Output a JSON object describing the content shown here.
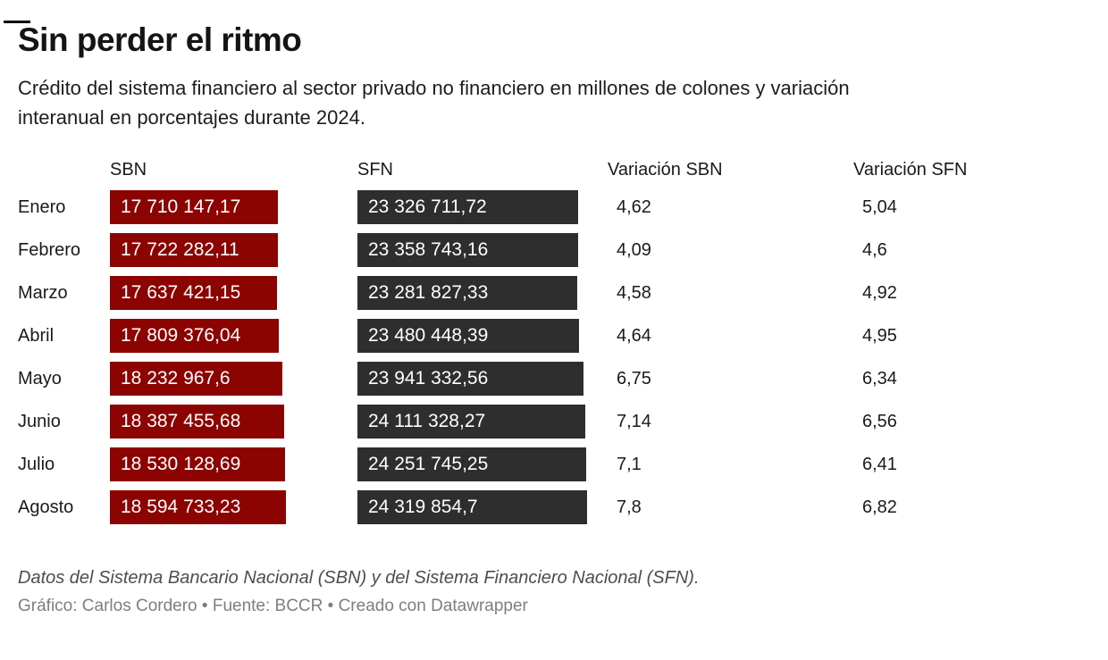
{
  "header": {
    "title": "Sin perder el ritmo",
    "description_line1": "Crédito del sistema financiero al sector privado no financiero en millones de colones y variación",
    "description_line2": "interanual en porcentajes durante 2024."
  },
  "table": {
    "columns": [
      "",
      "SBN",
      "SFN",
      "Variación SBN",
      "Variación SFN"
    ],
    "rows": [
      {
        "month": "Enero",
        "sbn": "17 710 147,17",
        "sfn": "23 326 711,72",
        "var_sbn": "4,62",
        "var_sfn": "5,04"
      },
      {
        "month": "Febrero",
        "sbn": "17 722 282,11",
        "sfn": "23 358 743,16",
        "var_sbn": "4,09",
        "var_sfn": "4,6"
      },
      {
        "month": "Marzo",
        "sbn": "17 637 421,15",
        "sfn": "23 281 827,33",
        "var_sbn": "4,58",
        "var_sfn": "4,92"
      },
      {
        "month": "Abril",
        "sbn": "17 809 376,04",
        "sfn": "23 480 448,39",
        "var_sbn": "4,64",
        "var_sfn": "4,95"
      },
      {
        "month": "Mayo",
        "sbn": "18 232 967,6",
        "sfn": "23 941 332,56",
        "var_sbn": "6,75",
        "var_sfn": "6,34"
      },
      {
        "month": "Junio",
        "sbn": "18 387 455,68",
        "sfn": "24 111 328,27",
        "var_sbn": "7,14",
        "var_sfn": "6,56"
      },
      {
        "month": "Julio",
        "sbn": "18 530 128,69",
        "sfn": "24 251 745,25",
        "var_sbn": "7,1",
        "var_sfn": "6,41"
      },
      {
        "month": "Agosto",
        "sbn": "18 594 733,23",
        "sfn": "24 319 854,7",
        "var_sbn": "7,8",
        "var_sfn": "6,82"
      }
    ]
  },
  "footer": {
    "notes": "Datos del Sistema Bancario Nacional (SBN) y del Sistema Financiero Nacional (SFN).",
    "byline": "Gráfico: Carlos Cordero • Fuente: BCCR • Creado con Datawrapper"
  },
  "colors": {
    "sbn_bar": "#8b0402",
    "sfn_bar": "#2e2e2e",
    "bar_text": "#ffffff"
  },
  "chart_data": {
    "type": "table",
    "title": "Sin perder el ritmo",
    "subtitle": "Crédito del sistema financiero al sector privado no financiero en millones de colones y variación interanual en porcentajes durante 2024.",
    "categories": [
      "Enero",
      "Febrero",
      "Marzo",
      "Abril",
      "Mayo",
      "Junio",
      "Julio",
      "Agosto"
    ],
    "series": [
      {
        "name": "SBN",
        "values": [
          17710147.17,
          17722282.11,
          17637421.15,
          17809376.04,
          18232967.6,
          18387455.68,
          18530128.69,
          18594733.23
        ]
      },
      {
        "name": "SFN",
        "values": [
          23326711.72,
          23358743.16,
          23281827.33,
          23480448.39,
          23941332.56,
          24111328.27,
          24251745.25,
          24319854.7
        ]
      },
      {
        "name": "Variación SBN",
        "values": [
          4.62,
          4.09,
          4.58,
          4.64,
          6.75,
          7.14,
          7.1,
          7.8
        ]
      },
      {
        "name": "Variación SFN",
        "values": [
          5.04,
          4.6,
          4.92,
          4.95,
          6.34,
          6.56,
          6.41,
          6.82
        ]
      }
    ],
    "layout": {
      "bar_columns": [
        "SBN",
        "SFN"
      ],
      "bars_scaled_to_column_max": true,
      "legend": "none",
      "grid": "off"
    },
    "notes": "Datos del Sistema Bancario Nacional (SBN) y del Sistema Financiero Nacional (SFN).",
    "byline": "Gráfico: Carlos Cordero • Fuente: BCCR • Creado con Datawrapper"
  }
}
